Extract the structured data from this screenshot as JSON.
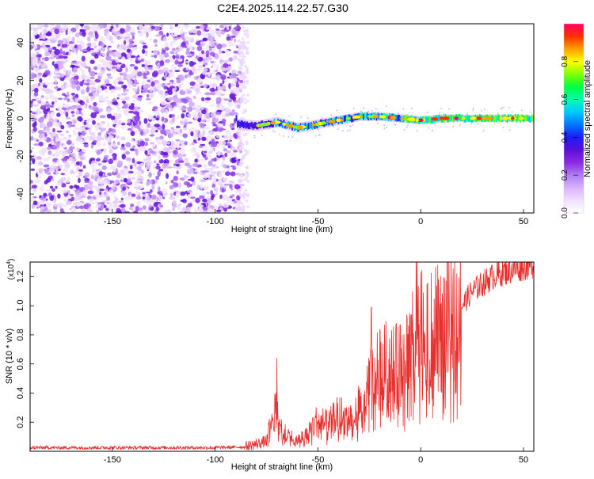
{
  "title": "C2E4.2025.114.22.57.G30",
  "colors": {
    "snr_line": "#e8312f",
    "frame": "#000000",
    "scatter": "#7b2be0"
  },
  "colormap": [
    "#ffffff",
    "#f0e0ff",
    "#d8b4fb",
    "#b07cf5",
    "#8a2be2",
    "#5b0fd6",
    "#1c1cff",
    "#0078ff",
    "#00c8ff",
    "#00ffb0",
    "#00ff40",
    "#80ff00",
    "#ffff00",
    "#ffa000",
    "#ff3000",
    "#ff0060"
  ],
  "chart_data": [
    {
      "type": "heatmap",
      "name": "spectrogram",
      "xlabel": "Height of straight line (km)",
      "ylabel": "Frequency (Hz)",
      "xlim": [
        -190,
        55
      ],
      "ylim": [
        -50,
        50
      ],
      "xticks": [
        -150,
        -100,
        -50,
        0,
        50
      ],
      "yticks": [
        -40,
        -20,
        0,
        20,
        40
      ],
      "noise_region_x": [
        -190,
        -87
      ],
      "signal_track": {
        "x": [
          -90,
          -80,
          -70,
          -60,
          -50,
          -40,
          -30,
          -20,
          -10,
          0,
          10,
          20,
          30,
          40,
          50,
          55
        ],
        "y": [
          -3,
          -4,
          -2,
          -5,
          -3,
          -1,
          1,
          1,
          0,
          -1,
          0,
          0,
          0,
          0,
          0,
          0
        ]
      },
      "colorbar": {
        "label": "Normalized spectral amplitude",
        "range": [
          0,
          1
        ],
        "ticks": [
          "0.0",
          "0.2",
          "0.4",
          "0.6",
          "0.8"
        ],
        "tick_values": [
          0.0,
          0.2,
          0.4,
          0.6,
          0.8
        ]
      }
    },
    {
      "type": "line",
      "name": "snr",
      "xlabel": "Height of straight line (km)",
      "ylabel": "SNR (10 * v/v)",
      "y_multiplier": "(x10",
      "y_multiplier_exp": "4",
      "y_multiplier_close": ")",
      "xlim": [
        -190,
        55
      ],
      "ylim": [
        0,
        13000
      ],
      "xticks": [
        -150,
        -100,
        -50,
        0,
        50
      ],
      "yticks": [
        2000,
        4000,
        6000,
        8000,
        10000,
        12000
      ],
      "ytick_labels": [
        "0.2",
        "0.4",
        "0.6",
        "0.8",
        "1.0",
        "1.2"
      ],
      "envelope": {
        "x": [
          -190,
          -100,
          -85,
          -75,
          -72,
          -70,
          -68,
          -65,
          -60,
          -55,
          -50,
          -45,
          -40,
          -35,
          -30,
          -25,
          -20,
          -15,
          -10,
          -5,
          -2,
          0,
          5,
          10,
          15,
          20,
          25,
          30,
          35,
          40,
          45,
          50,
          55
        ],
        "y": [
          250,
          250,
          300,
          700,
          2500,
          2800,
          2000,
          1200,
          700,
          1300,
          2200,
          1800,
          2600,
          2200,
          3000,
          4500,
          5500,
          6000,
          5500,
          7500,
          9000,
          8500,
          8000,
          8500,
          9000,
          10000,
          11000,
          11500,
          12000,
          12300,
          12500,
          12700,
          12900
        ]
      },
      "spikes": [
        {
          "x": -70,
          "y": 6400
        },
        {
          "x": -24,
          "y": 9900
        },
        {
          "x": -10,
          "y": 8700
        },
        {
          "x": 0,
          "y": 12300
        },
        {
          "x": 10,
          "y": 10200
        }
      ]
    }
  ]
}
